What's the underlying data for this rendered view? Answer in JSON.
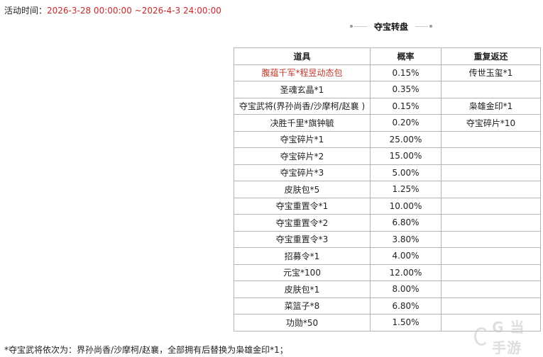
{
  "activity": {
    "label": "活动时间：",
    "time": "2026-3-28 00:00:00 ~2026-4-3 24:00:00"
  },
  "section_title": "夺宝转盘",
  "table": {
    "headers": [
      "道具",
      "概率",
      "重复返还"
    ],
    "rows": [
      {
        "item": "腹蕴千军*程昱动态包",
        "rate": "0.15%",
        "return": "传世玉玺*1"
      },
      {
        "item": "圣魂玄晶*1",
        "rate": "0.35%",
        "return": ""
      },
      {
        "item": "夺宝武将(界孙尚香/沙摩柯/赵襄 )",
        "rate": "0.15%",
        "return": "枭雄金印*1"
      },
      {
        "item": "决胜千里*旗钟毓",
        "rate": "0.20%",
        "return": "夺宝碎片*10"
      },
      {
        "item": "夺宝碎片*1",
        "rate": "25.00%",
        "return": ""
      },
      {
        "item": "夺宝碎片*2",
        "rate": "15.00%",
        "return": ""
      },
      {
        "item": "夺宝碎片*3",
        "rate": "5.00%",
        "return": ""
      },
      {
        "item": "皮肤包*5",
        "rate": "1.25%",
        "return": ""
      },
      {
        "item": "夺宝重置令*1",
        "rate": "10.00%",
        "return": ""
      },
      {
        "item": "夺宝重置令*2",
        "rate": "6.80%",
        "return": ""
      },
      {
        "item": "夺宝重置令*3",
        "rate": "3.80%",
        "return": ""
      },
      {
        "item": "招募令*1",
        "rate": "4.00%",
        "return": ""
      },
      {
        "item": "元宝*100",
        "rate": "12.00%",
        "return": ""
      },
      {
        "item": "皮肤包*1",
        "rate": "8.00%",
        "return": ""
      },
      {
        "item": "菜篮子*8",
        "rate": "6.80%",
        "return": ""
      },
      {
        "item": "功勋*50",
        "rate": "1.50%",
        "return": ""
      }
    ]
  },
  "note": "*夺宝武将依次为：界孙尚香/沙摩柯/赵襄，全部拥有后替换为枭雄金印*1；",
  "watermark": "G 当手游",
  "colors": {
    "time": "#c8282c",
    "highlight_item": "#c0392b",
    "border": "#b5b5b5"
  }
}
